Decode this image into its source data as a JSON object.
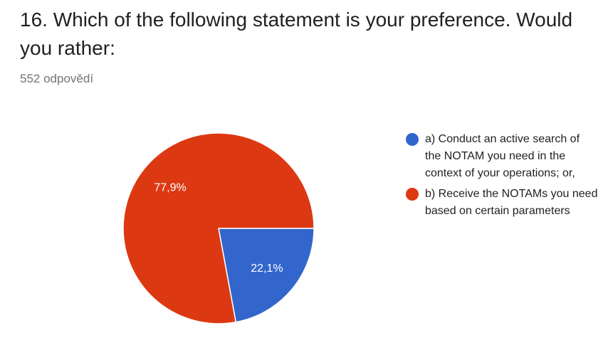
{
  "chart_data": {
    "type": "pie",
    "title": "16. Which of the following statement is your preference. Would you rather:",
    "subtitle": "552 odpovědí",
    "categories": [
      "a) Conduct an active search of the NOTAM you need in the context of your operations; or,",
      "b) Receive the NOTAMs you need based on certain parameters"
    ],
    "values": [
      22.1,
      77.9
    ],
    "value_labels": [
      "22,1%",
      "77,9%"
    ],
    "colors": [
      "#3366cc",
      "#dc3912"
    ],
    "legend": "right"
  }
}
